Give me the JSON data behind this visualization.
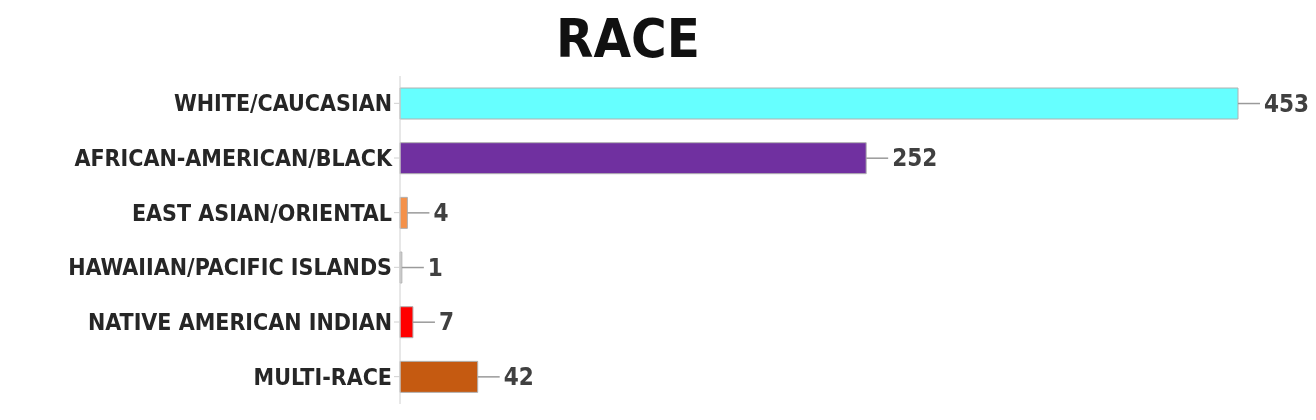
{
  "chart_data": {
    "type": "bar",
    "orientation": "horizontal",
    "title": "RACE",
    "categories": [
      "WHITE/CAUCASIAN",
      "AFRICAN-AMERICAN/BLACK",
      "EAST ASIAN/ORIENTAL",
      "HAWAIIAN/PACIFIC ISLANDS",
      "NATIVE AMERICAN INDIAN",
      "MULTI-RACE"
    ],
    "values": [
      453,
      252,
      4,
      1,
      7,
      42
    ],
    "colors": [
      "#66ffff",
      "#7030a0",
      "#f4914a",
      "#d9d9d9",
      "#ff0000",
      "#c55a11"
    ],
    "data_labels": true,
    "grid": false,
    "legend": false
  }
}
